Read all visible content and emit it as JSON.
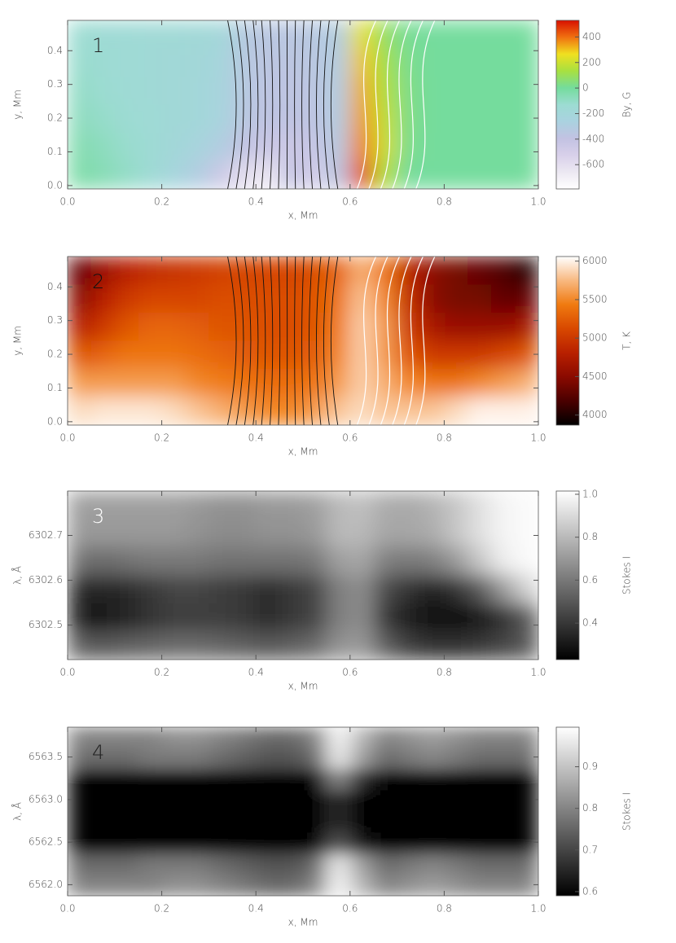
{
  "chart_data": [
    {
      "type": "heatmap",
      "label": "1",
      "label_color": "#222222",
      "xlabel": "x, Mm",
      "ylabel": "y, Mm",
      "colorbar_label": "By, G",
      "xlim": [
        0,
        1
      ],
      "xticks": [
        {
          "value": 0,
          "label": "0.0"
        },
        0.2,
        0.4,
        0.6,
        0.8,
        {
          "value": 1,
          "label": "1.0"
        }
      ],
      "ylim": [
        -0.01,
        0.49
      ],
      "yticks": [
        {
          "value": 0,
          "label": "0.0"
        },
        0.1,
        0.2,
        0.3,
        0.4
      ],
      "clim": [
        -790,
        530
      ],
      "cticks": [
        -600,
        -400,
        -200,
        0,
        200,
        400
      ],
      "colorscale": [
        "#ffffff",
        "#ece8f2",
        "#d8d0ea",
        "#c2c2e2",
        "#aad2e0",
        "#9cdcd2",
        "#74dc9c",
        "#a8e040",
        "#f0e020",
        "#f07010",
        "#d81000"
      ],
      "field_lines": true,
      "z": [
        [
          -130,
          -150,
          -160,
          -170,
          -170,
          -180,
          -200,
          -330,
          -350,
          -350,
          -340,
          -300,
          250,
          80,
          10,
          0,
          0,
          0,
          0,
          0
        ],
        [
          -120,
          -140,
          -160,
          -170,
          -180,
          -190,
          -220,
          -340,
          -360,
          -360,
          -350,
          -300,
          300,
          120,
          20,
          0,
          0,
          0,
          0,
          0
        ],
        [
          -100,
          -130,
          -150,
          -170,
          -180,
          -200,
          -230,
          -340,
          -370,
          -370,
          -360,
          -300,
          330,
          150,
          30,
          0,
          0,
          0,
          0,
          0
        ],
        [
          -80,
          -110,
          -140,
          -160,
          -180,
          -200,
          -240,
          -350,
          -380,
          -380,
          -370,
          -300,
          350,
          180,
          30,
          0,
          0,
          0,
          0,
          0
        ],
        [
          -50,
          -80,
          -120,
          -150,
          -190,
          -230,
          -300,
          -400,
          -450,
          -450,
          -420,
          -320,
          380,
          200,
          20,
          0,
          0,
          0,
          0,
          0
        ],
        [
          -30,
          -60,
          -100,
          -150,
          -220,
          -300,
          -450,
          -600,
          -650,
          -400,
          -500,
          -350,
          450,
          150,
          0,
          0,
          0,
          0,
          0,
          0
        ]
      ]
    },
    {
      "type": "heatmap",
      "label": "2",
      "label_color": "#111111",
      "xlabel": "x, Mm",
      "ylabel": "y, Mm",
      "colorbar_label": "T, K",
      "xlim": [
        0,
        1
      ],
      "xticks": [
        {
          "value": 0,
          "label": "0.0"
        },
        0.2,
        0.4,
        0.6,
        0.8,
        {
          "value": 1,
          "label": "1.0"
        }
      ],
      "ylim": [
        -0.01,
        0.49
      ],
      "yticks": [
        {
          "value": 0,
          "label": "0.0"
        },
        0.1,
        0.2,
        0.3,
        0.4
      ],
      "clim": [
        3870,
        6060
      ],
      "cticks": [
        4000,
        4500,
        5000,
        5500,
        6000
      ],
      "colorscale": [
        "#000000",
        "#4a0000",
        "#8a0a00",
        "#b82000",
        "#d84800",
        "#f07a10",
        "#f8b880",
        "#ffffff"
      ],
      "field_lines": true,
      "z": [
        [
          4300,
          4600,
          4800,
          4900,
          4950,
          5000,
          5050,
          5100,
          5100,
          5100,
          5150,
          5300,
          5700,
          5400,
          4800,
          4500,
          4400,
          4300,
          4200,
          4000
        ],
        [
          4500,
          4800,
          5000,
          5100,
          5100,
          5100,
          5150,
          5150,
          5150,
          5150,
          5200,
          5400,
          5800,
          5500,
          4900,
          4500,
          4400,
          4400,
          4300,
          4300
        ],
        [
          4800,
          5000,
          5200,
          5300,
          5300,
          5250,
          5200,
          5200,
          5150,
          5150,
          5200,
          5450,
          5850,
          5600,
          5000,
          4700,
          4600,
          4600,
          4600,
          4700
        ],
        [
          5200,
          5300,
          5400,
          5400,
          5400,
          5350,
          5300,
          5250,
          5200,
          5200,
          5250,
          5500,
          5850,
          5600,
          5200,
          5000,
          5000,
          5000,
          5100,
          5200
        ],
        [
          5600,
          5600,
          5600,
          5600,
          5600,
          5500,
          5450,
          5400,
          5350,
          5350,
          5400,
          5600,
          5850,
          5700,
          5500,
          5400,
          5400,
          5500,
          5600,
          5700
        ],
        [
          5900,
          5950,
          5950,
          5950,
          5900,
          5800,
          5700,
          5600,
          5500,
          5500,
          5600,
          5800,
          5900,
          5800,
          5800,
          5800,
          5900,
          6000,
          6000,
          6000
        ]
      ]
    },
    {
      "type": "heatmap",
      "label": "3",
      "label_color": "#ffffff",
      "xlabel": "x, Mm",
      "ylabel": "λ, Å",
      "colorbar_label": "Stokes I",
      "xlim": [
        0,
        1
      ],
      "xticks": [
        {
          "value": 0,
          "label": "0.0"
        },
        0.2,
        0.4,
        0.6,
        0.8,
        {
          "value": 1,
          "label": "1.0"
        }
      ],
      "ylim": [
        6302.423,
        6302.799
      ],
      "yticks": [
        6302.5,
        6302.6,
        6302.7
      ],
      "clim": [
        0.23,
        1.015
      ],
      "cticks": [
        0.4,
        0.6,
        0.8,
        {
          "value": 1,
          "label": "1.0"
        }
      ],
      "colorscale": [
        "#000000",
        "#ffffff"
      ],
      "field_lines": false,
      "z": [
        [
          0.72,
          0.72,
          0.72,
          0.72,
          0.72,
          0.7,
          0.68,
          0.68,
          0.7,
          0.7,
          0.72,
          0.8,
          0.82,
          0.76,
          0.75,
          0.78,
          0.84,
          0.92,
          0.98,
          1.0
        ],
        [
          0.7,
          0.7,
          0.7,
          0.7,
          0.7,
          0.68,
          0.66,
          0.66,
          0.68,
          0.68,
          0.7,
          0.8,
          0.8,
          0.74,
          0.74,
          0.76,
          0.84,
          0.92,
          0.98,
          1.0
        ],
        [
          0.58,
          0.56,
          0.58,
          0.6,
          0.6,
          0.6,
          0.58,
          0.58,
          0.58,
          0.58,
          0.6,
          0.72,
          0.74,
          0.62,
          0.6,
          0.62,
          0.7,
          0.84,
          0.96,
          1.0
        ],
        [
          0.36,
          0.34,
          0.36,
          0.4,
          0.44,
          0.44,
          0.42,
          0.4,
          0.36,
          0.4,
          0.44,
          0.62,
          0.66,
          0.46,
          0.38,
          0.34,
          0.38,
          0.5,
          0.7,
          0.88
        ],
        [
          0.32,
          0.3,
          0.34,
          0.38,
          0.42,
          0.42,
          0.42,
          0.4,
          0.36,
          0.4,
          0.44,
          0.62,
          0.66,
          0.4,
          0.32,
          0.26,
          0.26,
          0.3,
          0.38,
          0.5
        ],
        [
          0.52,
          0.5,
          0.52,
          0.54,
          0.56,
          0.56,
          0.54,
          0.52,
          0.5,
          0.52,
          0.56,
          0.68,
          0.7,
          0.52,
          0.42,
          0.38,
          0.38,
          0.4,
          0.44,
          0.5
        ]
      ]
    },
    {
      "type": "heatmap",
      "label": "4",
      "label_color": "#222222",
      "xlabel": "x, Mm",
      "ylabel": "λ, Å",
      "colorbar_label": "Stokes I",
      "xlim": [
        0,
        1
      ],
      "xticks": [
        {
          "value": 0,
          "label": "0.0"
        },
        0.2,
        0.4,
        0.6,
        0.8,
        {
          "value": 1,
          "label": "1.0"
        }
      ],
      "ylim": [
        6561.87,
        6563.85
      ],
      "yticks": [
        {
          "value": 6562,
          "label": "6562.0"
        },
        6562.5,
        {
          "value": 6563,
          "label": "6563.0"
        },
        6563.5
      ],
      "clim": [
        0.59,
        0.995
      ],
      "cticks": [
        0.6,
        0.7,
        0.8,
        0.9
      ],
      "colorscale": [
        "#000000",
        "#ffffff"
      ],
      "field_lines": false,
      "z": [
        [
          0.8,
          0.8,
          0.8,
          0.8,
          0.82,
          0.82,
          0.8,
          0.78,
          0.76,
          0.76,
          0.8,
          0.98,
          0.88,
          0.8,
          0.82,
          0.84,
          0.82,
          0.8,
          0.8,
          0.8
        ],
        [
          0.76,
          0.76,
          0.76,
          0.78,
          0.78,
          0.78,
          0.76,
          0.74,
          0.72,
          0.72,
          0.76,
          0.96,
          0.84,
          0.76,
          0.78,
          0.8,
          0.78,
          0.76,
          0.76,
          0.76
        ],
        [
          0.59,
          0.59,
          0.59,
          0.59,
          0.59,
          0.59,
          0.59,
          0.59,
          0.59,
          0.59,
          0.6,
          0.8,
          0.66,
          0.59,
          0.59,
          0.59,
          0.59,
          0.59,
          0.59,
          0.59
        ],
        [
          0.59,
          0.59,
          0.59,
          0.59,
          0.59,
          0.59,
          0.59,
          0.59,
          0.59,
          0.59,
          0.59,
          0.66,
          0.6,
          0.59,
          0.59,
          0.59,
          0.59,
          0.59,
          0.59,
          0.59
        ],
        [
          0.59,
          0.59,
          0.59,
          0.59,
          0.59,
          0.59,
          0.59,
          0.59,
          0.59,
          0.59,
          0.59,
          0.66,
          0.6,
          0.59,
          0.59,
          0.59,
          0.59,
          0.59,
          0.59,
          0.59
        ],
        [
          0.59,
          0.59,
          0.59,
          0.59,
          0.59,
          0.59,
          0.59,
          0.59,
          0.59,
          0.59,
          0.6,
          0.72,
          0.62,
          0.59,
          0.59,
          0.59,
          0.59,
          0.59,
          0.59,
          0.59
        ],
        [
          0.76,
          0.76,
          0.76,
          0.78,
          0.78,
          0.78,
          0.76,
          0.74,
          0.72,
          0.72,
          0.76,
          0.96,
          0.84,
          0.76,
          0.78,
          0.8,
          0.78,
          0.76,
          0.76,
          0.76
        ],
        [
          0.8,
          0.8,
          0.8,
          0.8,
          0.82,
          0.82,
          0.8,
          0.78,
          0.76,
          0.76,
          0.8,
          0.98,
          0.88,
          0.8,
          0.82,
          0.84,
          0.82,
          0.8,
          0.8,
          0.8
        ]
      ]
    }
  ]
}
